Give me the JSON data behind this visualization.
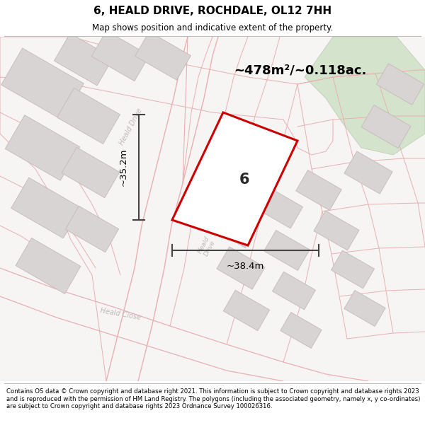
{
  "title": "6, HEALD DRIVE, ROCHDALE, OL12 7HH",
  "subtitle": "Map shows position and indicative extent of the property.",
  "area_text": "~478m²/~0.118ac.",
  "dim_width": "~38.4m",
  "dim_height": "~35.2m",
  "label": "6",
  "footer": "Contains OS data © Crown copyright and database right 2021. This information is subject to Crown copyright and database rights 2023 and is reproduced with the permission of HM Land Registry. The polygons (including the associated geometry, namely x, y co-ordinates) are subject to Crown copyright and database rights 2023 Ordnance Survey 100026316.",
  "bg_color": "#f7f4f4",
  "plot_fill": "#ffffff",
  "plot_edge": "#cc0000",
  "green_color": "#d4e4cc",
  "building_color": "#d8d4d4",
  "building_edge": "#c8b8b8",
  "road_line_color": "#e8b0b0",
  "road_label_color": "#c0b8b8",
  "dim_color": "#444444",
  "text_color": "#000000"
}
